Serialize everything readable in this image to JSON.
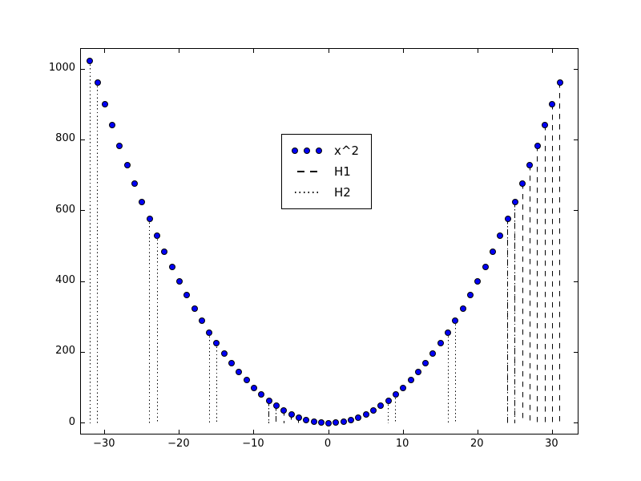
{
  "figure": {
    "background": "#ffffff",
    "spine_color": "#000000",
    "marker_fill": "#0000f5",
    "marker_edge": "#000000",
    "line_color": "#000000"
  },
  "chart_data": {
    "type": "scatter",
    "title": "",
    "xlabel": "",
    "ylabel": "",
    "grid": false,
    "xlim": [
      -33.2,
      33.4
    ],
    "ylim": [
      -29.9,
      1056.8
    ],
    "xticks": {
      "values": [
        -30,
        -20,
        -10,
        0,
        10,
        20,
        30
      ],
      "labels": [
        "−30",
        "−20",
        "−10",
        "0",
        "10",
        "20",
        "30"
      ]
    },
    "yticks": {
      "values": [
        0,
        200,
        400,
        600,
        800,
        1000
      ],
      "labels": [
        "0",
        "200",
        "400",
        "600",
        "800",
        "1000"
      ]
    },
    "series": [
      {
        "name": "x^2",
        "type": "scatter",
        "marker": "circle",
        "color": "#0000f5",
        "edge_color": "#000000",
        "x": [
          -32,
          -31,
          -30,
          -29,
          -28,
          -27,
          -26,
          -25,
          -24,
          -23,
          -22,
          -21,
          -20,
          -19,
          -18,
          -17,
          -16,
          -15,
          -14,
          -13,
          -12,
          -11,
          -10,
          -9,
          -8,
          -7,
          -6,
          -5,
          -4,
          -3,
          -2,
          -1,
          0,
          1,
          2,
          3,
          4,
          5,
          6,
          7,
          8,
          9,
          10,
          11,
          12,
          13,
          14,
          15,
          16,
          17,
          18,
          19,
          20,
          21,
          22,
          23,
          24,
          25,
          26,
          27,
          28,
          29,
          30,
          31
        ],
        "y": [
          1024,
          961,
          900,
          841,
          784,
          729,
          676,
          625,
          576,
          529,
          484,
          441,
          400,
          361,
          324,
          289,
          256,
          225,
          196,
          169,
          144,
          121,
          100,
          81,
          64,
          49,
          36,
          25,
          16,
          9,
          4,
          1,
          0,
          1,
          4,
          9,
          16,
          25,
          36,
          49,
          64,
          81,
          100,
          121,
          144,
          169,
          196,
          225,
          256,
          289,
          324,
          361,
          400,
          441,
          484,
          529,
          576,
          625,
          676,
          729,
          784,
          841,
          900,
          961
        ]
      },
      {
        "name": "H1",
        "type": "vlines",
        "style": "dashed",
        "color": "#000000",
        "ymin": 0,
        "x": [
          -8,
          -7,
          -6,
          -5,
          -4,
          -3,
          -2,
          -1,
          24,
          25,
          26,
          27,
          28,
          29,
          30,
          31
        ],
        "ymax": [
          64,
          49,
          36,
          25,
          16,
          9,
          4,
          1,
          576,
          625,
          676,
          729,
          784,
          841,
          900,
          961
        ]
      },
      {
        "name": "H2",
        "type": "vlines",
        "style": "dotted",
        "color": "#000000",
        "ymin": 0,
        "x": [
          -32,
          -31,
          -24,
          -23,
          -16,
          -15,
          -8,
          -7,
          0,
          1,
          8,
          9,
          16,
          17,
          24,
          25
        ],
        "ymax": [
          1024,
          961,
          576,
          529,
          256,
          225,
          64,
          49,
          0,
          1,
          64,
          81,
          256,
          289,
          576,
          625
        ]
      }
    ],
    "legend": {
      "position": "upper center-left",
      "entries": [
        {
          "label": "x^2",
          "sample": "blue-dot-markers"
        },
        {
          "label": "H1",
          "sample": "dashed-line"
        },
        {
          "label": "H2",
          "sample": "dotted-line"
        }
      ]
    }
  }
}
